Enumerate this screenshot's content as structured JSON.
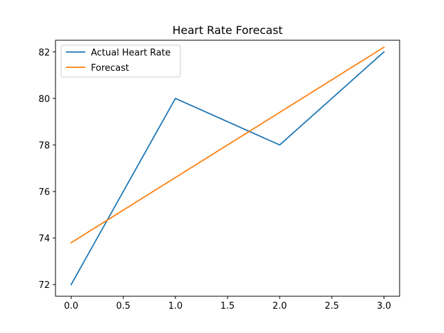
{
  "chart_data": {
    "type": "line",
    "title": "Heart Rate Forecast",
    "xlabel": "",
    "ylabel": "",
    "x": [
      0,
      1,
      2,
      3
    ],
    "xlim": [
      -0.15,
      3.15
    ],
    "ylim": [
      71.5,
      82.5
    ],
    "x_ticks": [
      0.0,
      0.5,
      1.0,
      1.5,
      2.0,
      2.5,
      3.0
    ],
    "x_tick_labels": [
      "0.0",
      "0.5",
      "1.0",
      "1.5",
      "2.0",
      "2.5",
      "3.0"
    ],
    "y_ticks": [
      72,
      74,
      76,
      78,
      80,
      82
    ],
    "y_tick_labels": [
      "72",
      "74",
      "76",
      "78",
      "80",
      "82"
    ],
    "grid": false,
    "legend_position": "top-left",
    "series": [
      {
        "name": "Actual Heart Rate",
        "color": "#1f77b4",
        "values": [
          72,
          80,
          78,
          82
        ]
      },
      {
        "name": "Forecast",
        "color": "#ff7f0e",
        "values": [
          73.8,
          76.6,
          79.4,
          82.2
        ]
      }
    ]
  }
}
